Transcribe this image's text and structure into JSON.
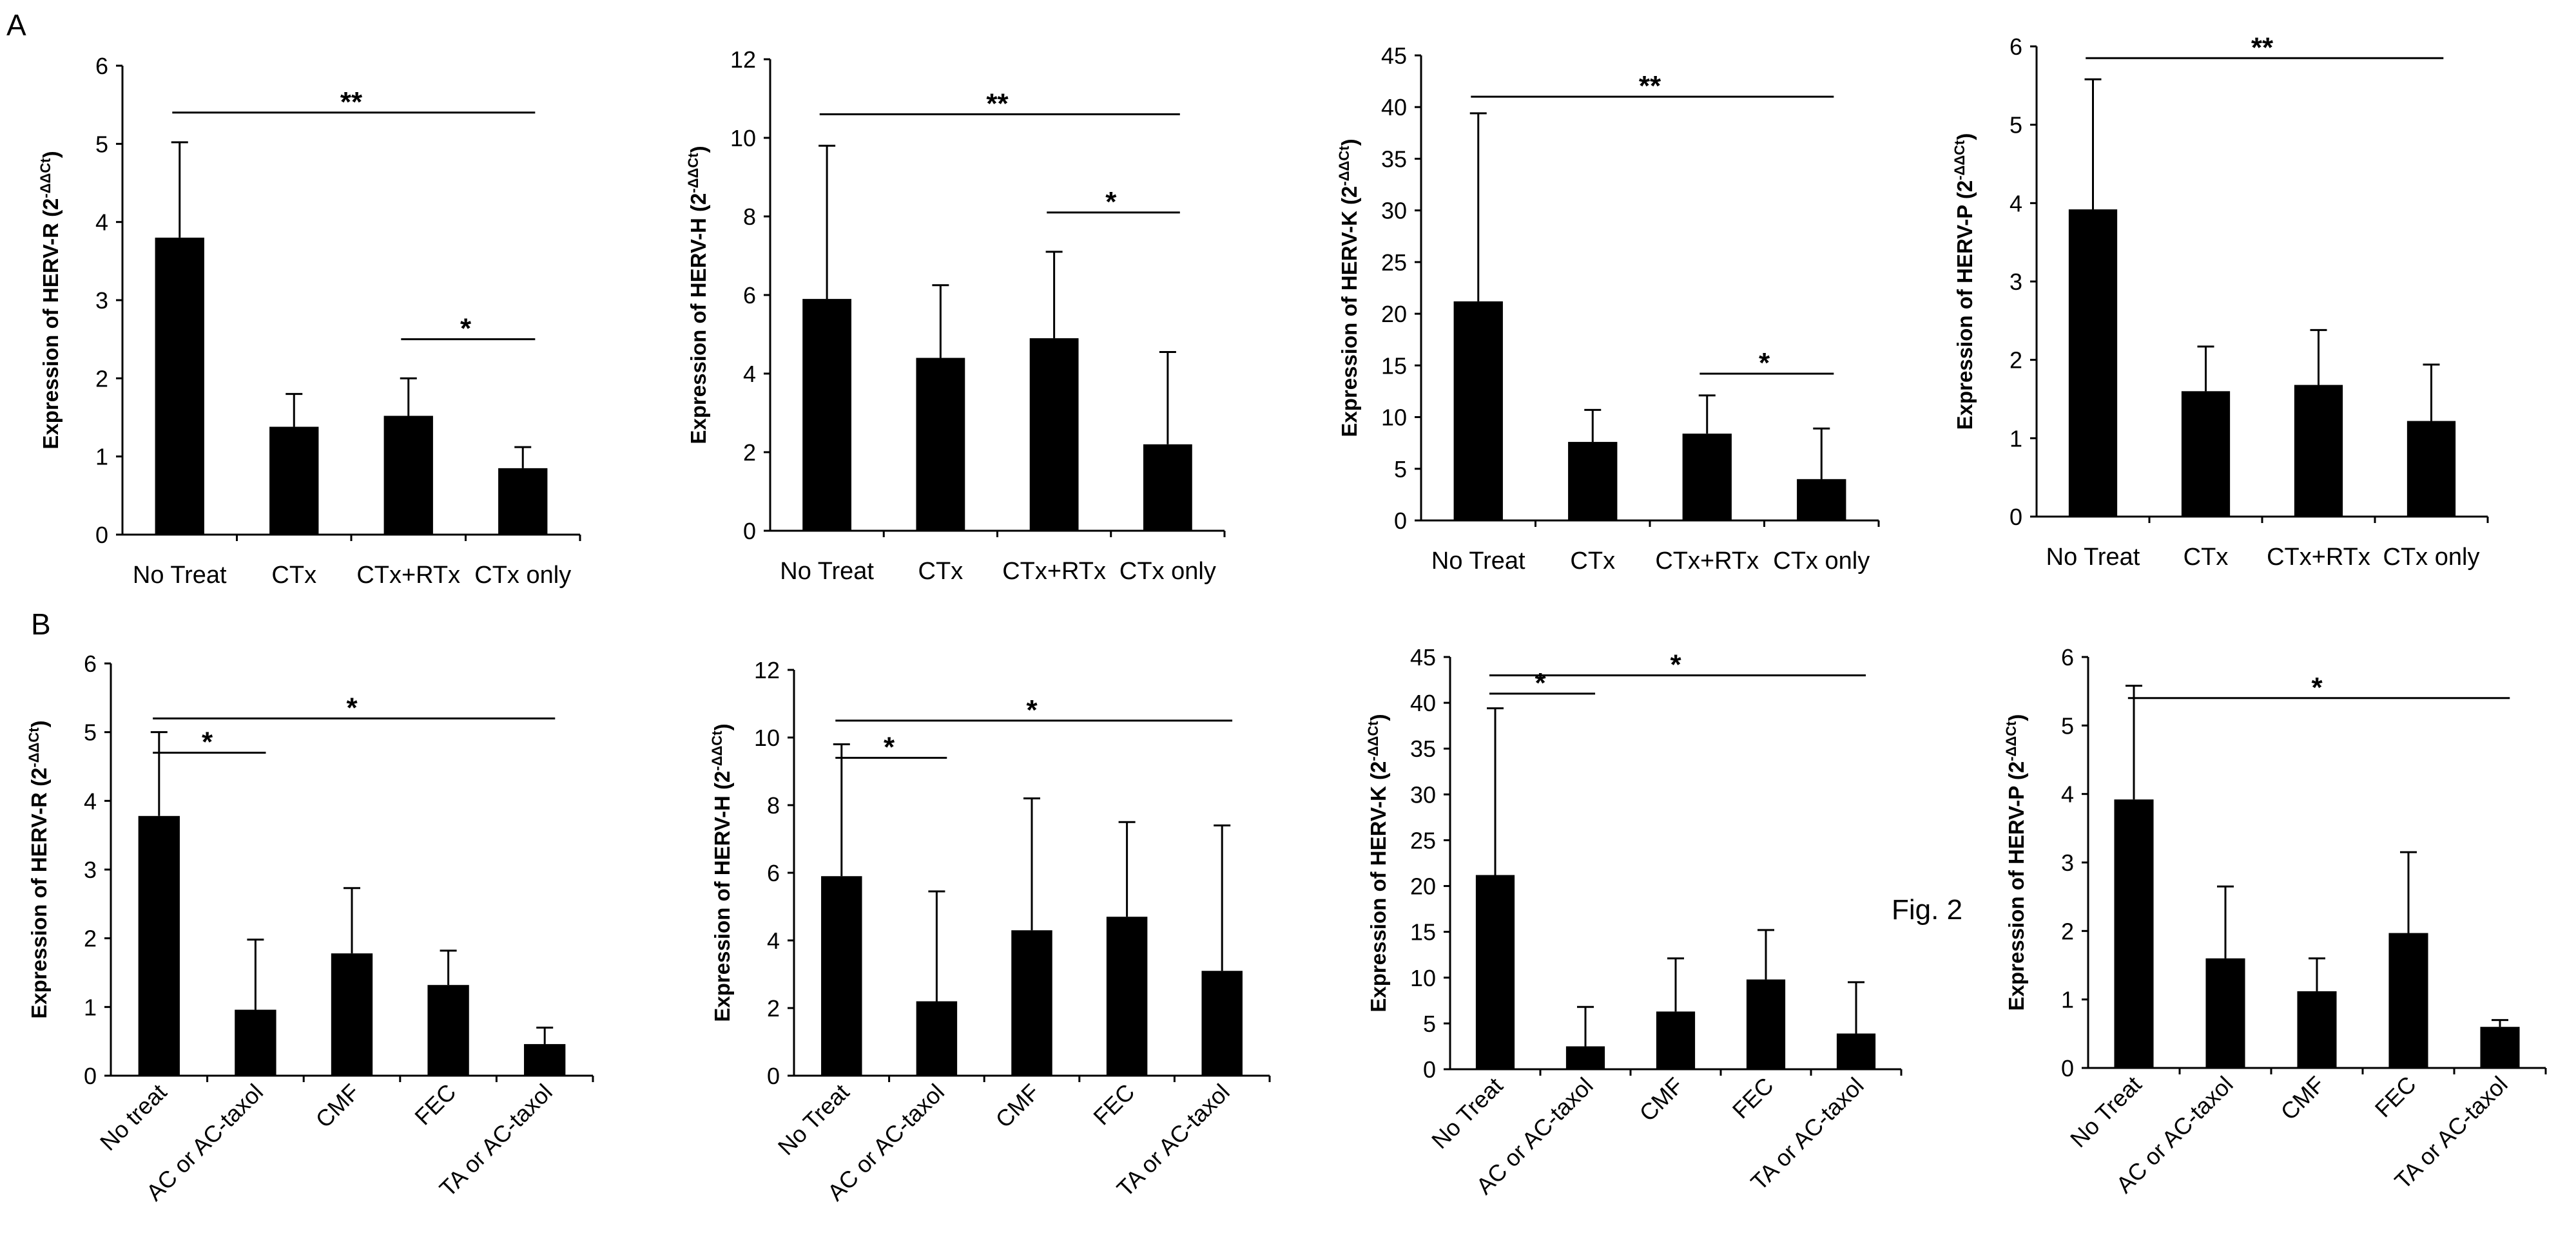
{
  "panel_labels": {
    "A": "A",
    "B": "B"
  },
  "figure_label": "Fig. 2",
  "chart_data": [
    {
      "type": "bar",
      "panel": "A",
      "ylabel_text": "Expression of HERV-R (2",
      "ylabel_sup": "-ΔΔCt",
      "ylabel_close": ")",
      "categories": [
        "No Treat",
        "CTx",
        "CTx+RTx",
        "CTx only"
      ],
      "values": [
        3.8,
        1.38,
        1.52,
        0.85
      ],
      "errors": [
        1.22,
        0.42,
        0.48,
        0.27
      ],
      "ylim": [
        0,
        6
      ],
      "yticks": [
        0,
        1,
        2,
        3,
        4,
        5,
        6
      ],
      "significance": [
        {
          "from": 0,
          "to": 3,
          "label": "**",
          "y": 5.4
        },
        {
          "from": 2,
          "to": 3,
          "label": "*",
          "y": 2.5
        }
      ]
    },
    {
      "type": "bar",
      "panel": "A",
      "ylabel_text": "Expression of HERV-H (2",
      "ylabel_sup": "-ΔΔCt",
      "ylabel_close": ")",
      "categories": [
        "No Treat",
        "CTx",
        "CTx+RTx",
        "CTx only"
      ],
      "values": [
        5.9,
        4.4,
        4.9,
        2.2
      ],
      "errors": [
        3.9,
        1.85,
        2.2,
        2.35
      ],
      "ylim": [
        0,
        12
      ],
      "yticks": [
        0,
        2,
        4,
        6,
        8,
        10,
        12
      ],
      "significance": [
        {
          "from": 0,
          "to": 3,
          "label": "**",
          "y": 10.6
        },
        {
          "from": 2,
          "to": 3,
          "label": "*",
          "y": 8.1
        }
      ]
    },
    {
      "type": "bar",
      "panel": "A",
      "ylabel_text": "Expression of HERV-K (2",
      "ylabel_sup": "-ΔΔCt",
      "ylabel_close": ")",
      "categories": [
        "No Treat",
        "CTx",
        "CTx+RTx",
        "CTx only"
      ],
      "values": [
        21.2,
        7.6,
        8.4,
        4.0
      ],
      "errors": [
        18.2,
        3.1,
        3.7,
        4.9
      ],
      "ylim": [
        0,
        45
      ],
      "yticks": [
        0,
        5,
        10,
        15,
        20,
        25,
        30,
        35,
        40,
        45
      ],
      "significance": [
        {
          "from": 0,
          "to": 3,
          "label": "**",
          "y": 41.0
        },
        {
          "from": 2,
          "to": 3,
          "label": "*",
          "y": 14.2
        }
      ]
    },
    {
      "type": "bar",
      "panel": "A",
      "ylabel_text": "Expression of HERV-P (2",
      "ylabel_sup": "-ΔΔCt",
      "ylabel_close": ")",
      "categories": [
        "No Treat",
        "CTx",
        "CTx+RTx",
        "CTx only"
      ],
      "values": [
        3.92,
        1.6,
        1.68,
        1.22
      ],
      "errors": [
        1.66,
        0.57,
        0.7,
        0.72
      ],
      "ylim": [
        0,
        6
      ],
      "yticks": [
        0,
        1,
        2,
        3,
        4,
        5,
        6
      ],
      "significance": [
        {
          "from": 0,
          "to": 3,
          "label": "**",
          "y": 5.85
        }
      ]
    },
    {
      "type": "bar",
      "panel": "B",
      "ylabel_text": "Expression of HERV-R (2",
      "ylabel_sup": "-ΔΔCt",
      "ylabel_close": ")",
      "categories": [
        "No treat",
        "AC or AC-taxol",
        "CMF",
        "FEC",
        "TA or AC-taxol"
      ],
      "values": [
        3.78,
        0.96,
        1.78,
        1.32,
        0.46
      ],
      "errors": [
        1.22,
        1.02,
        0.95,
        0.5,
        0.24
      ],
      "ylim": [
        0,
        6
      ],
      "yticks": [
        0,
        1,
        2,
        3,
        4,
        5,
        6
      ],
      "significance": [
        {
          "from": 0,
          "to": 4,
          "label": "*",
          "y": 5.2
        },
        {
          "from": 0,
          "to": 1,
          "label": "*",
          "y": 4.7
        }
      ]
    },
    {
      "type": "bar",
      "panel": "B",
      "ylabel_text": "Expression of HERV-H (2",
      "ylabel_sup": "-ΔΔCt",
      "ylabel_close": ")",
      "categories": [
        "No Treat",
        "AC or AC-taxol",
        "CMF",
        "FEC",
        "TA or AC-taxol"
      ],
      "values": [
        5.9,
        2.2,
        4.3,
        4.7,
        3.1
      ],
      "errors": [
        3.9,
        3.25,
        3.9,
        2.8,
        4.3
      ],
      "ylim": [
        0,
        12
      ],
      "yticks": [
        0,
        2,
        4,
        6,
        8,
        10,
        12
      ],
      "significance": [
        {
          "from": 0,
          "to": 4,
          "label": "*",
          "y": 10.5
        },
        {
          "from": 0,
          "to": 1,
          "label": "*",
          "y": 9.4
        }
      ]
    },
    {
      "type": "bar",
      "panel": "B",
      "ylabel_text": "Expression of HERV-K (2",
      "ylabel_sup": "-ΔΔCt",
      "ylabel_close": ")",
      "categories": [
        "No Treat",
        "AC or AC-taxol",
        "CMF",
        "FEC",
        "TA or AC-taxol"
      ],
      "values": [
        21.2,
        2.5,
        6.3,
        9.8,
        3.9
      ],
      "errors": [
        18.2,
        4.3,
        5.8,
        5.4,
        5.6
      ],
      "ylim": [
        0,
        45
      ],
      "yticks": [
        0,
        5,
        10,
        15,
        20,
        25,
        30,
        35,
        40,
        45
      ],
      "significance": [
        {
          "from": 0,
          "to": 4,
          "label": "*",
          "y": 43.0
        },
        {
          "from": 0,
          "to": 1,
          "label": "*",
          "y": 41.0
        }
      ]
    },
    {
      "type": "bar",
      "panel": "B",
      "ylabel_text": "Expression of HERV-P (2",
      "ylabel_sup": "-ΔΔCt",
      "ylabel_close": ")",
      "categories": [
        "No Treat",
        "AC or AC-taxol",
        "CMF",
        "FEC",
        "TA or AC-taxol"
      ],
      "values": [
        3.92,
        1.6,
        1.12,
        1.97,
        0.6
      ],
      "errors": [
        1.66,
        1.05,
        0.48,
        1.18,
        0.1
      ],
      "ylim": [
        0,
        6
      ],
      "yticks": [
        0,
        1,
        2,
        3,
        4,
        5,
        6
      ],
      "significance": [
        {
          "from": 0,
          "to": 4,
          "label": "*",
          "y": 5.4
        }
      ]
    }
  ]
}
